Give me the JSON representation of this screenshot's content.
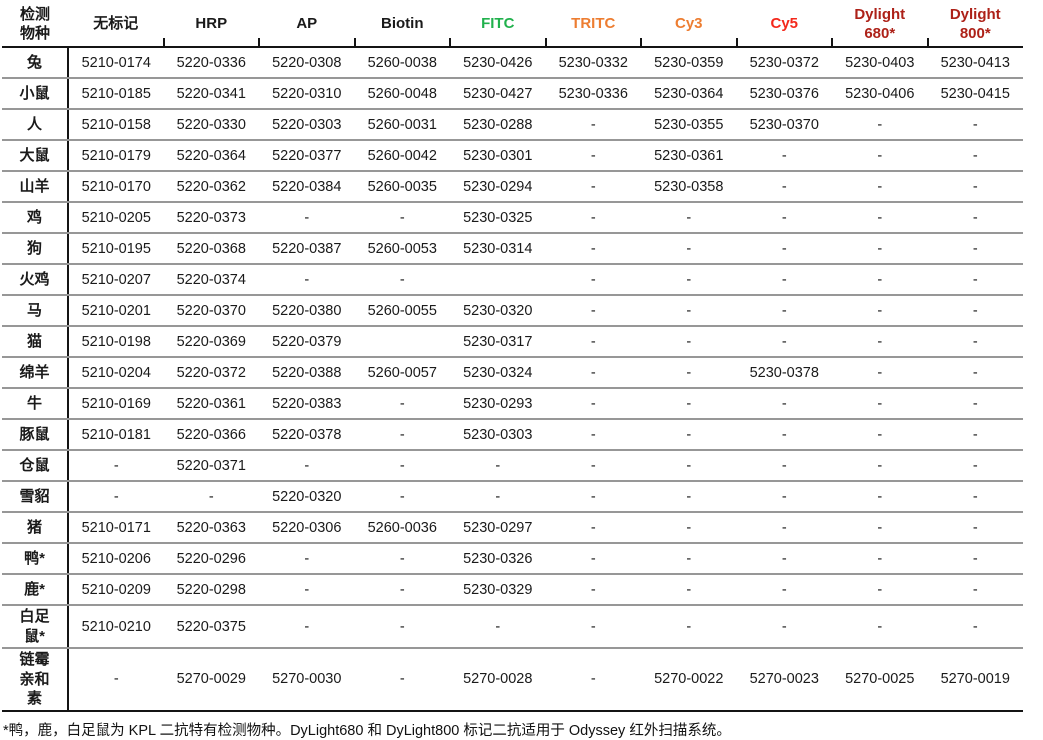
{
  "table": {
    "columns": [
      {
        "key": "species",
        "label": "检测\n物种",
        "color": "#1a1a1a"
      },
      {
        "key": "unlabeled",
        "label": "无标记",
        "color": "#1a1a1a"
      },
      {
        "key": "hrp",
        "label": "HRP",
        "color": "#1a1a1a"
      },
      {
        "key": "ap",
        "label": "AP",
        "color": "#1a1a1a"
      },
      {
        "key": "biotin",
        "label": "Biotin",
        "color": "#1a1a1a"
      },
      {
        "key": "fitc",
        "label": "FITC",
        "color": "#21b14d"
      },
      {
        "key": "tritc",
        "label": "TRITC",
        "color": "#ed7d31"
      },
      {
        "key": "cy3",
        "label": "Cy3",
        "color": "#ed7d31"
      },
      {
        "key": "cy5",
        "label": "Cy5",
        "color": "#f4281b"
      },
      {
        "key": "dylight680",
        "label": "Dylight\n680*",
        "color": "#ad2118"
      },
      {
        "key": "dylight800",
        "label": "Dylight\n800*",
        "color": "#ad2118"
      }
    ],
    "rows": [
      {
        "species": "兔",
        "cells": [
          "5210-0174",
          "5220-0336",
          "5220-0308",
          "5260-0038",
          "5230-0426",
          "5230-0332",
          "5230-0359",
          "5230-0372",
          "5230-0403",
          "5230-0413"
        ]
      },
      {
        "species": "小鼠",
        "cells": [
          "5210-0185",
          "5220-0341",
          "5220-0310",
          "5260-0048",
          "5230-0427",
          "5230-0336",
          "5230-0364",
          "5230-0376",
          "5230-0406",
          "5230-0415"
        ]
      },
      {
        "species": "人",
        "cells": [
          "5210-0158",
          "5220-0330",
          "5220-0303",
          "5260-0031",
          "5230-0288",
          "-",
          "5230-0355",
          "5230-0370",
          "-",
          "-"
        ]
      },
      {
        "species": "大鼠",
        "cells": [
          "5210-0179",
          "5220-0364",
          "5220-0377",
          "5260-0042",
          "5230-0301",
          "-",
          "5230-0361",
          "-",
          "-",
          "-"
        ]
      },
      {
        "species": "山羊",
        "cells": [
          "5210-0170",
          "5220-0362",
          "5220-0384",
          "5260-0035",
          "5230-0294",
          "-",
          "5230-0358",
          "-",
          "-",
          "-"
        ]
      },
      {
        "species": "鸡",
        "cells": [
          "5210-0205",
          "5220-0373",
          "-",
          "-",
          "5230-0325",
          "-",
          "-",
          "-",
          "-",
          "-"
        ]
      },
      {
        "species": "狗",
        "cells": [
          "5210-0195",
          "5220-0368",
          "5220-0387",
          "5260-0053",
          "5230-0314",
          "-",
          "-",
          "-",
          "-",
          "-"
        ]
      },
      {
        "species": "火鸡",
        "cells": [
          "5210-0207",
          "5220-0374",
          "-",
          "-",
          "",
          "-",
          "-",
          "-",
          "-",
          "-"
        ]
      },
      {
        "species": "马",
        "cells": [
          "5210-0201",
          "5220-0370",
          "5220-0380",
          "5260-0055",
          "5230-0320",
          "-",
          "-",
          "-",
          "-",
          "-"
        ]
      },
      {
        "species": "猫",
        "cells": [
          "5210-0198",
          "5220-0369",
          "5220-0379",
          "",
          "5230-0317",
          "-",
          "-",
          "-",
          "-",
          "-"
        ]
      },
      {
        "species": "绵羊",
        "cells": [
          "5210-0204",
          "5220-0372",
          "5220-0388",
          "5260-0057",
          "5230-0324",
          "-",
          "-",
          "5230-0378",
          "-",
          "-"
        ]
      },
      {
        "species": "牛",
        "cells": [
          "5210-0169",
          "5220-0361",
          "5220-0383",
          "-",
          "5230-0293",
          "-",
          "-",
          "-",
          "-",
          "-"
        ]
      },
      {
        "species": "豚鼠",
        "cells": [
          "5210-0181",
          "5220-0366",
          "5220-0378",
          "-",
          "5230-0303",
          "-",
          "-",
          "-",
          "-",
          "-"
        ]
      },
      {
        "species": "仓鼠",
        "cells": [
          "-",
          "5220-0371",
          "-",
          "-",
          "-",
          "-",
          "-",
          "-",
          "-",
          "-"
        ]
      },
      {
        "species": "雪貂",
        "cells": [
          "-",
          "-",
          "5220-0320",
          "-",
          "-",
          "-",
          "-",
          "-",
          "-",
          "-"
        ]
      },
      {
        "species": "猪",
        "cells": [
          "5210-0171",
          "5220-0363",
          "5220-0306",
          "5260-0036",
          "5230-0297",
          "-",
          "-",
          "-",
          "-",
          "-"
        ]
      },
      {
        "species": "鸭*",
        "cells": [
          "5210-0206",
          "5220-0296",
          "-",
          "-",
          "5230-0326",
          "-",
          "-",
          "-",
          "-",
          "-"
        ]
      },
      {
        "species": "鹿*",
        "cells": [
          "5210-0209",
          "5220-0298",
          "-",
          "-",
          "5230-0329",
          "-",
          "-",
          "-",
          "-",
          "-"
        ]
      },
      {
        "species": "白足\n鼠*",
        "cells": [
          "5210-0210",
          "5220-0375",
          "-",
          "-",
          "-",
          "-",
          "-",
          "-",
          "-",
          "-"
        ]
      },
      {
        "species": "链霉\n亲和\n素",
        "cells": [
          "-",
          "5270-0029",
          "5270-0030",
          "-",
          "5270-0028",
          "-",
          "5270-0022",
          "5270-0023",
          "5270-0025",
          "5270-0019"
        ]
      }
    ]
  },
  "footnote": "*鸭，鹿，白足鼠为 KPL 二抗特有检测物种。DyLight680 和 DyLight800 标记二抗适用于 Odyssey 红外扫描系统。",
  "layout_colors": {
    "header_rule": "#141414",
    "row_rule": "#979797"
  }
}
